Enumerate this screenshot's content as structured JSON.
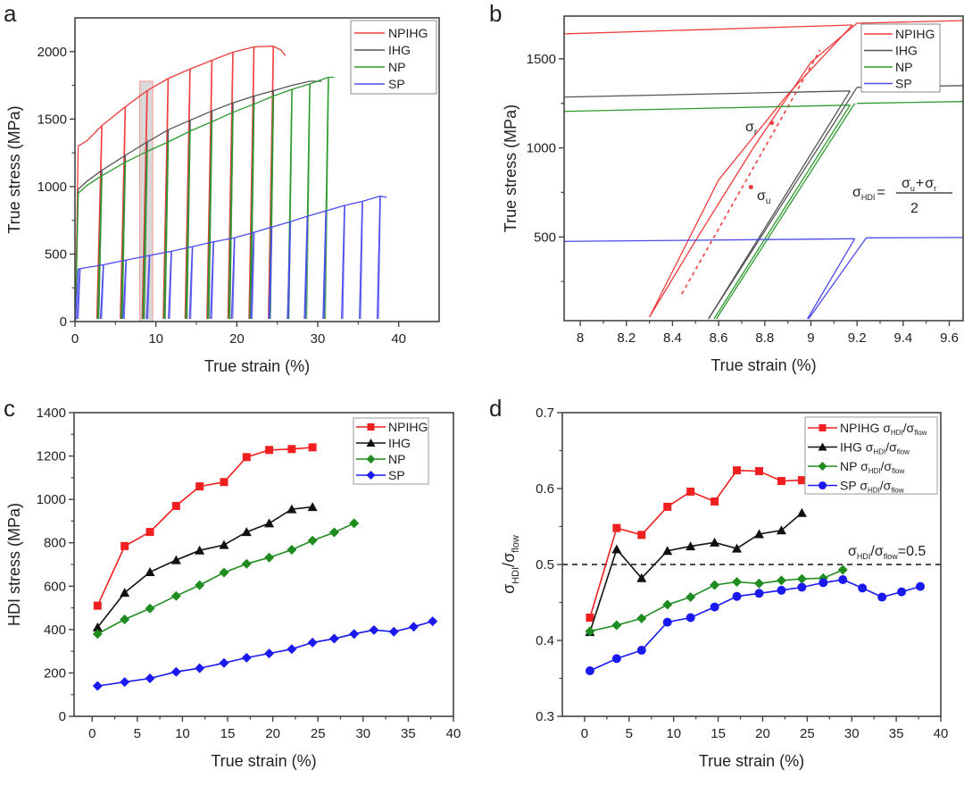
{
  "chart_data": [
    {
      "id": "a",
      "type": "line",
      "panel_label": "a",
      "title": "",
      "xlabel": "True strain (%)",
      "ylabel": "True stress (MPa)",
      "xlim": [
        0,
        45
      ],
      "ylim": [
        0,
        2250
      ],
      "xticks": [
        0,
        10,
        20,
        30,
        40
      ],
      "yticks": [
        0,
        500,
        1000,
        1500,
        2000
      ],
      "legend_position": "top-right",
      "highlight_region": {
        "x": [
          8,
          9.6
        ],
        "y": [
          0,
          1780
        ]
      },
      "series": [
        {
          "name": "NPIHG",
          "color": "#f03c3c",
          "envelope": [
            [
              0.4,
              1300
            ],
            [
              1.5,
              1340
            ],
            [
              3.3,
              1450
            ],
            [
              6.2,
              1590
            ],
            [
              8.9,
              1710
            ],
            [
              11.5,
              1800
            ],
            [
              14.2,
              1870
            ],
            [
              16.9,
              1935
            ],
            [
              19.5,
              1995
            ],
            [
              22.1,
              2035
            ],
            [
              24.5,
              2040
            ],
            [
              25.5,
              2010
            ],
            [
              26,
              1970
            ]
          ],
          "unload_strains": [
            3.3,
            6.2,
            8.9,
            11.5,
            14.2,
            16.9,
            19.5,
            22.1,
            24.5
          ],
          "unload_offset": 0.6
        },
        {
          "name": "IHG",
          "color": "#555555",
          "envelope": [
            [
              0.4,
              980
            ],
            [
              1.5,
              1040
            ],
            [
              3.3,
              1120
            ],
            [
              6.2,
              1230
            ],
            [
              8.9,
              1330
            ],
            [
              11.5,
              1420
            ],
            [
              14.2,
              1490
            ],
            [
              16.9,
              1560
            ],
            [
              19.5,
              1620
            ],
            [
              22.1,
              1670
            ],
            [
              24.5,
              1710
            ],
            [
              26.8,
              1750
            ],
            [
              29,
              1780
            ],
            [
              30.5,
              1780
            ]
          ],
          "unload_strains": [
            3.3,
            6.2,
            8.9,
            11.5,
            14.2,
            16.9,
            19.5,
            22.1,
            24.5
          ],
          "unload_offset": 0.5
        },
        {
          "name": "NP",
          "color": "#2e9a2e",
          "envelope": [
            [
              0.4,
              950
            ],
            [
              1.5,
              1010
            ],
            [
              3.3,
              1080
            ],
            [
              6.2,
              1180
            ],
            [
              8.9,
              1260
            ],
            [
              11.5,
              1330
            ],
            [
              14.2,
              1410
            ],
            [
              16.9,
              1480
            ],
            [
              19.5,
              1550
            ],
            [
              22.1,
              1610
            ],
            [
              24.5,
              1670
            ],
            [
              26.8,
              1720
            ],
            [
              29,
              1760
            ],
            [
              31.3,
              1810
            ],
            [
              32,
              1810
            ]
          ],
          "unload_strains": [
            3.3,
            6.2,
            8.9,
            11.5,
            14.2,
            16.9,
            19.5,
            22.1,
            24.5,
            26.8,
            29,
            31.3
          ],
          "unload_offset": 0.5
        },
        {
          "name": "SP",
          "color": "#4a4af0",
          "envelope": [
            [
              0.4,
              390
            ],
            [
              3.5,
              420
            ],
            [
              6.3,
              455
            ],
            [
              9.2,
              490
            ],
            [
              11.9,
              520
            ],
            [
              14.5,
              555
            ],
            [
              17.1,
              590
            ],
            [
              19.7,
              620
            ],
            [
              22.1,
              660
            ],
            [
              24.3,
              700
            ],
            [
              26.6,
              740
            ],
            [
              28.7,
              780
            ],
            [
              31,
              820
            ],
            [
              33.3,
              860
            ],
            [
              35.5,
              890
            ],
            [
              37.7,
              930
            ],
            [
              38.5,
              920
            ]
          ],
          "unload_strains": [
            0.6,
            3.5,
            6.3,
            9.2,
            11.9,
            14.5,
            17.1,
            19.7,
            22.1,
            24.3,
            26.6,
            28.7,
            31,
            33.3,
            35.5,
            37.7
          ],
          "unload_offset": 0.35
        }
      ]
    },
    {
      "id": "b",
      "type": "line",
      "panel_label": "b",
      "title": "",
      "xlabel": "True strain (%)",
      "ylabel": "True stress (MPa)",
      "xlim": [
        7.93,
        9.66
      ],
      "ylim": [
        30,
        1740
      ],
      "xticks": [
        8,
        8.2,
        8.4,
        8.6,
        8.8,
        9,
        9.2,
        9.4,
        9.6
      ],
      "yticks": [
        500,
        1000,
        1500
      ],
      "legend_position": "top-right",
      "annotations": {
        "sigma_r": "σ",
        "sigma_r_sub": "r",
        "sigma_u": "σ",
        "sigma_u_sub": "u",
        "formula_lhs": "σ",
        "formula_lhs_sub": "HDI",
        "formula_eq": "=",
        "formula_num_a": "σ",
        "formula_num_a_sub": "u",
        "formula_plus": "+",
        "formula_num_b": "σ",
        "formula_num_b_sub": "r",
        "formula_den": "2"
      },
      "markers": {
        "sigma_r": [
          8.83,
          1140
        ],
        "sigma_u": [
          8.74,
          780
        ]
      },
      "series": [
        {
          "name": "NPIHG",
          "color": "#f03c3c",
          "pre": [
            [
              7.93,
              1640
            ],
            [
              9.18,
              1690
            ]
          ],
          "post": [
            [
              9.2,
              1700
            ],
            [
              9.66,
              1715
            ]
          ],
          "unload": [
            [
              9.18,
              1690
            ],
            [
              8.9,
              1300
            ],
            [
              8.6,
              820
            ],
            [
              8.3,
              50
            ]
          ],
          "reload": [
            [
              8.3,
              50
            ],
            [
              8.5,
              480
            ],
            [
              8.75,
              1000
            ],
            [
              9.0,
              1480
            ],
            [
              9.2,
              1700
            ]
          ],
          "tangent": [
            [
              8.44,
              180
            ],
            [
              9.04,
              1550
            ]
          ]
        },
        {
          "name": "IHG",
          "color": "#555555",
          "pre": [
            [
              7.93,
              1285
            ],
            [
              9.17,
              1320
            ]
          ],
          "post": [
            [
              9.2,
              1340
            ],
            [
              9.66,
              1350
            ]
          ],
          "unload": [
            [
              9.17,
              1320
            ],
            [
              8.556,
              40
            ]
          ],
          "reload": [
            [
              8.556,
              40
            ],
            [
              9.2,
              1340
            ]
          ]
        },
        {
          "name": "NP",
          "color": "#2e9a2e",
          "pre": [
            [
              7.93,
              1205
            ],
            [
              9.17,
              1240
            ]
          ],
          "post": [
            [
              9.2,
              1250
            ],
            [
              9.66,
              1260
            ]
          ],
          "unload": [
            [
              9.17,
              1240
            ],
            [
              8.58,
              40
            ]
          ],
          "reload": [
            [
              8.59,
              40
            ],
            [
              9.19,
              1250
            ]
          ]
        },
        {
          "name": "SP",
          "color": "#4a4af0",
          "pre": [
            [
              7.93,
              475
            ],
            [
              9.19,
              490
            ]
          ],
          "post": [
            [
              9.24,
              495
            ],
            [
              9.66,
              497
            ]
          ],
          "unload": [
            [
              9.19,
              490
            ],
            [
              8.985,
              40
            ]
          ],
          "reload": [
            [
              8.99,
              40
            ],
            [
              9.24,
              495
            ]
          ]
        }
      ]
    },
    {
      "id": "c",
      "type": "line",
      "panel_label": "c",
      "title": "",
      "xlabel": "True strain (%)",
      "ylabel": "HDI stress (MPa)",
      "xlim": [
        -2,
        40
      ],
      "ylim": [
        0,
        1400
      ],
      "xticks": [
        0,
        5,
        10,
        15,
        20,
        25,
        30,
        35,
        40
      ],
      "yticks": [
        0,
        200,
        400,
        600,
        800,
        1000,
        1200,
        1400
      ],
      "legend_position": "top-right",
      "series": [
        {
          "name": "NPIHG",
          "color": "#f02020",
          "marker": "square",
          "x": [
            0.6,
            3.6,
            6.4,
            9.3,
            11.9,
            14.6,
            17.1,
            19.6,
            22.1,
            24.4
          ],
          "y": [
            510,
            785,
            850,
            970,
            1060,
            1080,
            1195,
            1228,
            1232,
            1240
          ]
        },
        {
          "name": "IHG",
          "color": "#111111",
          "marker": "triangle",
          "x": [
            0.6,
            3.6,
            6.4,
            9.3,
            11.9,
            14.6,
            17.1,
            19.6,
            22.1,
            24.4
          ],
          "y": [
            410,
            570,
            665,
            720,
            765,
            790,
            850,
            890,
            955,
            965
          ]
        },
        {
          "name": "NP",
          "color": "#1e8c1e",
          "marker": "diamond",
          "x": [
            0.6,
            3.6,
            6.4,
            9.3,
            11.9,
            14.6,
            17.1,
            19.6,
            22.1,
            24.4,
            26.8,
            29
          ],
          "y": [
            380,
            447,
            497,
            555,
            605,
            663,
            703,
            732,
            768,
            810,
            848,
            890
          ]
        },
        {
          "name": "SP",
          "color": "#1a1af0",
          "marker": "diamond",
          "x": [
            0.6,
            3.6,
            6.4,
            9.3,
            11.9,
            14.6,
            17.1,
            19.6,
            22.1,
            24.4,
            26.8,
            29,
            31.2,
            33.4,
            35.6,
            37.7
          ],
          "y": [
            140,
            158,
            175,
            205,
            222,
            246,
            270,
            290,
            310,
            340,
            358,
            380,
            398,
            390,
            413,
            438
          ]
        }
      ]
    },
    {
      "id": "d",
      "type": "line",
      "panel_label": "d",
      "title": "",
      "xlabel": "True strain (%)",
      "ylabel": "σ",
      "ylabel_sub1": "HDI",
      "ylabel_mid": "/σ",
      "ylabel_sub2": "flow",
      "xlim": [
        -2.5,
        40
      ],
      "ylim": [
        0.3,
        0.7
      ],
      "xticks": [
        0,
        5,
        10,
        15,
        20,
        25,
        30,
        35,
        40
      ],
      "yticks": [
        0.3,
        0.4,
        0.5,
        0.6,
        0.7
      ],
      "legend_position": "top-right",
      "reference_line": {
        "y": 0.5,
        "label_main": "σ",
        "label_sub1": "HDI",
        "label_mid": "/σ",
        "label_sub2": "flow",
        "label_tail": "=0.5"
      },
      "series": [
        {
          "name": "NPIHG",
          "legend_suffix_main": " σ",
          "legend_sub1": "HDI",
          "legend_mid": "/σ",
          "legend_sub2": "flow",
          "color": "#f02020",
          "marker": "square",
          "x": [
            0.6,
            3.6,
            6.4,
            9.3,
            11.9,
            14.6,
            17.1,
            19.6,
            22.1,
            24.4
          ],
          "y": [
            0.43,
            0.548,
            0.539,
            0.576,
            0.596,
            0.583,
            0.624,
            0.623,
            0.61,
            0.611
          ]
        },
        {
          "name": "IHG",
          "legend_suffix_main": " σ",
          "legend_sub1": "HDI",
          "legend_mid": "/σ",
          "legend_sub2": "flow",
          "color": "#111111",
          "marker": "triangle",
          "x": [
            0.6,
            3.6,
            6.4,
            9.3,
            11.9,
            14.6,
            17.1,
            19.6,
            22.1,
            24.4
          ],
          "y": [
            0.411,
            0.52,
            0.482,
            0.518,
            0.524,
            0.529,
            0.521,
            0.54,
            0.545,
            0.568
          ]
        },
        {
          "name": "NP",
          "legend_suffix_main": " σ",
          "legend_sub1": "HDI",
          "legend_mid": "/σ",
          "legend_sub2": "flow",
          "color": "#1e8c1e",
          "marker": "diamond",
          "x": [
            0.6,
            3.6,
            6.4,
            9.3,
            11.9,
            14.6,
            17.1,
            19.6,
            22.1,
            24.4,
            26.8,
            29
          ],
          "y": [
            0.412,
            0.42,
            0.429,
            0.447,
            0.457,
            0.473,
            0.477,
            0.475,
            0.479,
            0.481,
            0.482,
            0.493
          ]
        },
        {
          "name": "SP",
          "legend_suffix_main": " σ",
          "legend_sub1": "HDI",
          "legend_mid": "/σ",
          "legend_sub2": "flow",
          "color": "#1a1af0",
          "marker": "circle",
          "x": [
            0.6,
            3.6,
            6.4,
            9.3,
            11.9,
            14.6,
            17.1,
            19.6,
            22.1,
            24.4,
            26.8,
            29,
            31.2,
            33.4,
            35.6,
            37.7
          ],
          "y": [
            0.36,
            0.376,
            0.387,
            0.424,
            0.43,
            0.444,
            0.458,
            0.462,
            0.466,
            0.47,
            0.476,
            0.48,
            0.469,
            0.457,
            0.464,
            0.471
          ]
        }
      ]
    }
  ]
}
